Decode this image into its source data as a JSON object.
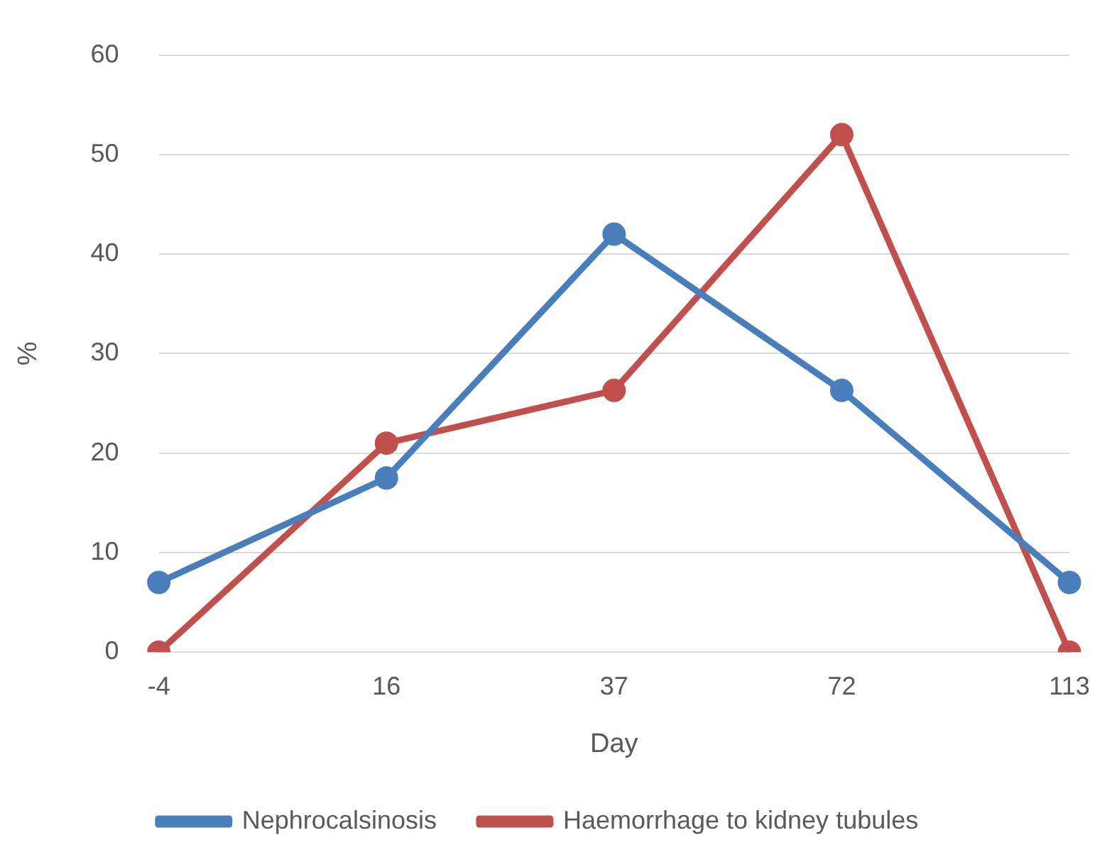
{
  "chart_data": {
    "type": "line",
    "xlabel": "Day",
    "ylabel": "%",
    "categories": [
      "-4",
      "16",
      "37",
      "72",
      "113"
    ],
    "series": [
      {
        "name": "Nephrocalsinosis",
        "color": "#4a7ebb",
        "values": [
          7,
          17.5,
          42,
          26.3,
          7
        ]
      },
      {
        "name": "Haemorrhage to kidney tubules",
        "color": "#c0504d",
        "values": [
          0,
          21,
          26.3,
          52,
          0
        ]
      }
    ],
    "ylim": [
      0,
      60
    ],
    "yticks": [
      0,
      10,
      20,
      30,
      40,
      50,
      60
    ],
    "grid": "y",
    "legend": "bottom",
    "marker": "circle",
    "line_style": "solid"
  }
}
